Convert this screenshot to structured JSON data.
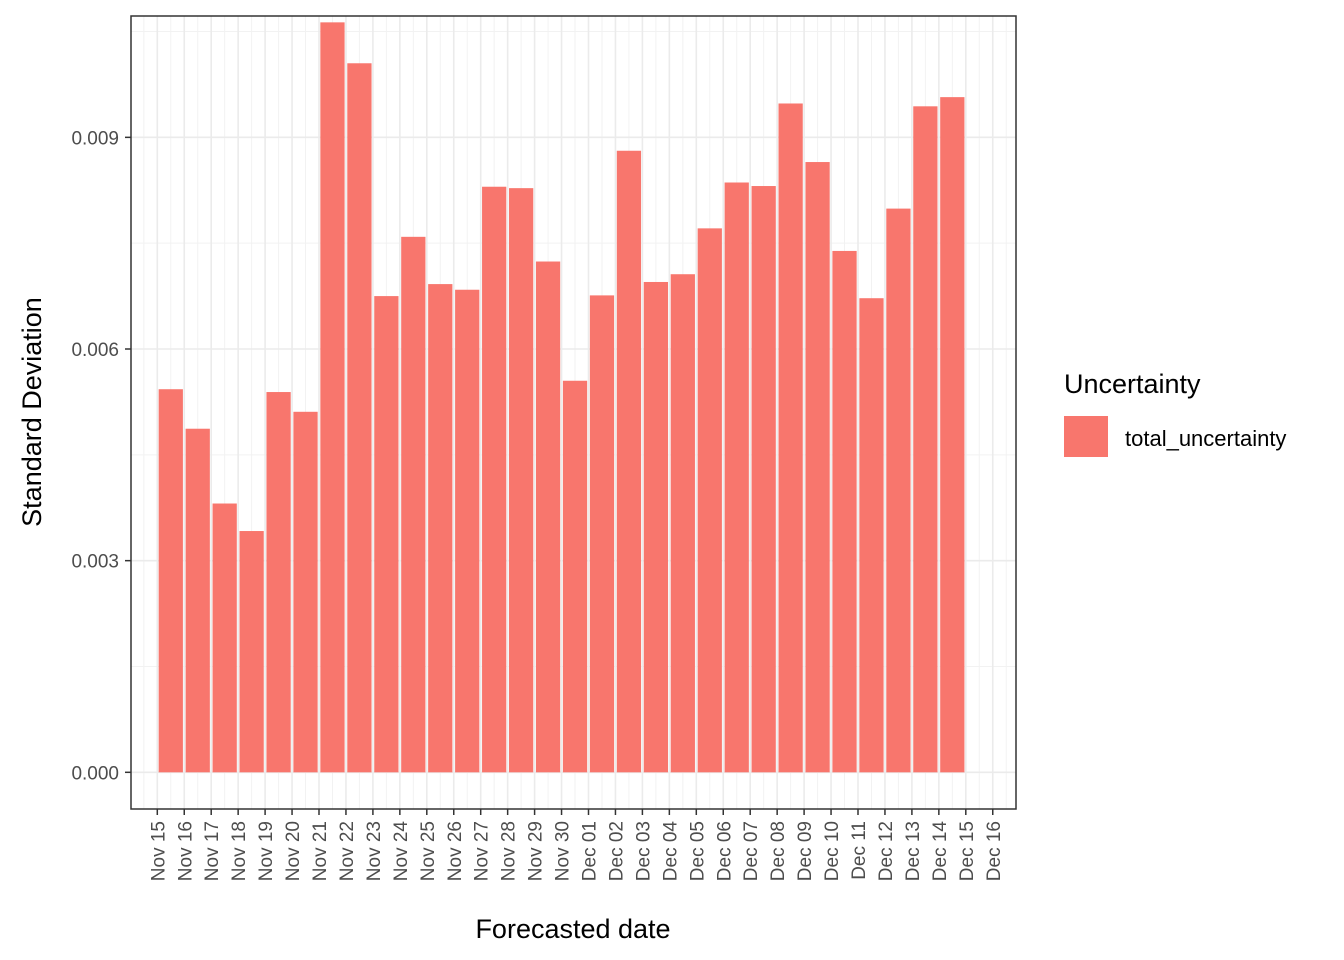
{
  "chart_data": {
    "type": "bar",
    "xlabel": "Forecasted date",
    "ylabel": "Standard Deviation",
    "ylim": [
      -0.00052,
      0.01072
    ],
    "xlim": [
      "Nov 14",
      "Dec 16"
    ],
    "x_ticks": [
      "Nov 15",
      "Nov 16",
      "Nov 17",
      "Nov 18",
      "Nov 19",
      "Nov 20",
      "Nov 21",
      "Nov 22",
      "Nov 23",
      "Nov 24",
      "Nov 25",
      "Nov 26",
      "Nov 27",
      "Nov 28",
      "Nov 29",
      "Nov 30",
      "Dec 01",
      "Dec 02",
      "Dec 03",
      "Dec 04",
      "Dec 05",
      "Dec 06",
      "Dec 07",
      "Dec 08",
      "Dec 09",
      "Dec 10",
      "Dec 11",
      "Dec 12",
      "Dec 13",
      "Dec 14",
      "Dec 15",
      "Dec 16"
    ],
    "y_ticks": [
      "0.000",
      "0.003",
      "0.006",
      "0.009"
    ],
    "y_tick_values": [
      0,
      0.003,
      0.006,
      0.009
    ],
    "categories": [
      "Nov 16",
      "Nov 17",
      "Nov 18",
      "Nov 19",
      "Nov 20",
      "Nov 21",
      "Nov 22",
      "Nov 23",
      "Nov 24",
      "Nov 25",
      "Nov 26",
      "Nov 27",
      "Nov 28",
      "Nov 29",
      "Nov 30",
      "Dec 01",
      "Dec 02",
      "Dec 03",
      "Dec 04",
      "Dec 05",
      "Dec 06",
      "Dec 07",
      "Dec 08",
      "Dec 09",
      "Dec 10",
      "Dec 11",
      "Dec 12",
      "Dec 13",
      "Dec 14",
      "Dec 15"
    ],
    "series": [
      {
        "name": "total_uncertainty",
        "color": "#F8766D",
        "values": [
          0.00543,
          0.00487,
          0.00381,
          0.00342,
          0.00539,
          0.00511,
          0.01063,
          0.01005,
          0.00675,
          0.00759,
          0.00692,
          0.00684,
          0.0083,
          0.00828,
          0.00724,
          0.00555,
          0.00676,
          0.00881,
          0.00695,
          0.00706,
          0.00771,
          0.00836,
          0.00831,
          0.00948,
          0.00865,
          0.00739,
          0.00672,
          0.00799,
          0.00944,
          0.00957
        ]
      }
    ],
    "legend": {
      "title": "Uncertainty",
      "position": "right"
    },
    "grid": true,
    "theme": "bw"
  }
}
